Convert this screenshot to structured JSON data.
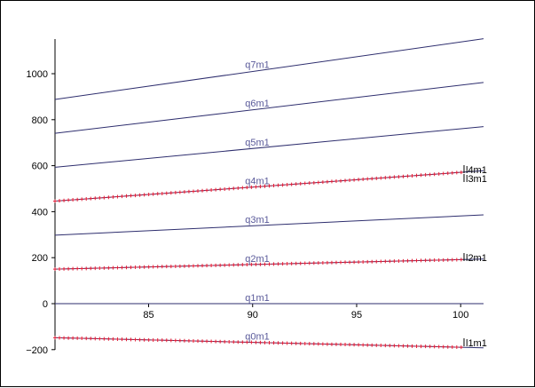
{
  "chart_data": {
    "type": "line",
    "title": "",
    "xlabel": "",
    "ylabel": "",
    "xlim": [
      80.5,
      101.1
    ],
    "ylim": [
      -205,
      1165
    ],
    "x_ticks": [
      85,
      90,
      95,
      100
    ],
    "y_ticks": [
      -200,
      0,
      200,
      400,
      600,
      800,
      1000
    ],
    "x_tick_labels": [
      "85",
      "90",
      "95",
      "100"
    ],
    "y_tick_labels": [
      "−200",
      "0",
      "200",
      "400",
      "600",
      "800",
      "1000"
    ],
    "grid": false,
    "series": [
      {
        "name": "q0m1",
        "x": [
          80.5,
          101.1
        ],
        "y": [
          -148,
          -192
        ],
        "color": "#2e2e6e",
        "markers": true
      },
      {
        "name": "q1m1",
        "x": [
          80.5,
          101.1
        ],
        "y": [
          0,
          0
        ],
        "color": "#2e2e6e",
        "markers": false
      },
      {
        "name": "q2m1",
        "x": [
          80.5,
          101.1
        ],
        "y": [
          150,
          194
        ],
        "color": "#2e2e6e",
        "markers": true
      },
      {
        "name": "q3m1",
        "x": [
          80.5,
          101.1
        ],
        "y": [
          298,
          386
        ],
        "color": "#2e2e6e",
        "markers": false
      },
      {
        "name": "q4m1",
        "x": [
          80.5,
          101.1
        ],
        "y": [
          446,
          578
        ],
        "color": "#2e2e6e",
        "markers": true
      },
      {
        "name": "q5m1",
        "x": [
          80.5,
          101.1
        ],
        "y": [
          593,
          770
        ],
        "color": "#2e2e6e",
        "markers": false
      },
      {
        "name": "q6m1",
        "x": [
          80.5,
          101.1
        ],
        "y": [
          741,
          962
        ],
        "color": "#2e2e6e",
        "markers": false
      },
      {
        "name": "q7m1",
        "x": [
          80.5,
          101.1
        ],
        "y": [
          888,
          1152
        ],
        "color": "#2e2e6e",
        "markers": false
      }
    ],
    "marker_color": "#e0203a",
    "end_labels": [
      "l4m1",
      "l3m1",
      "l2m1",
      "l1m1"
    ]
  }
}
